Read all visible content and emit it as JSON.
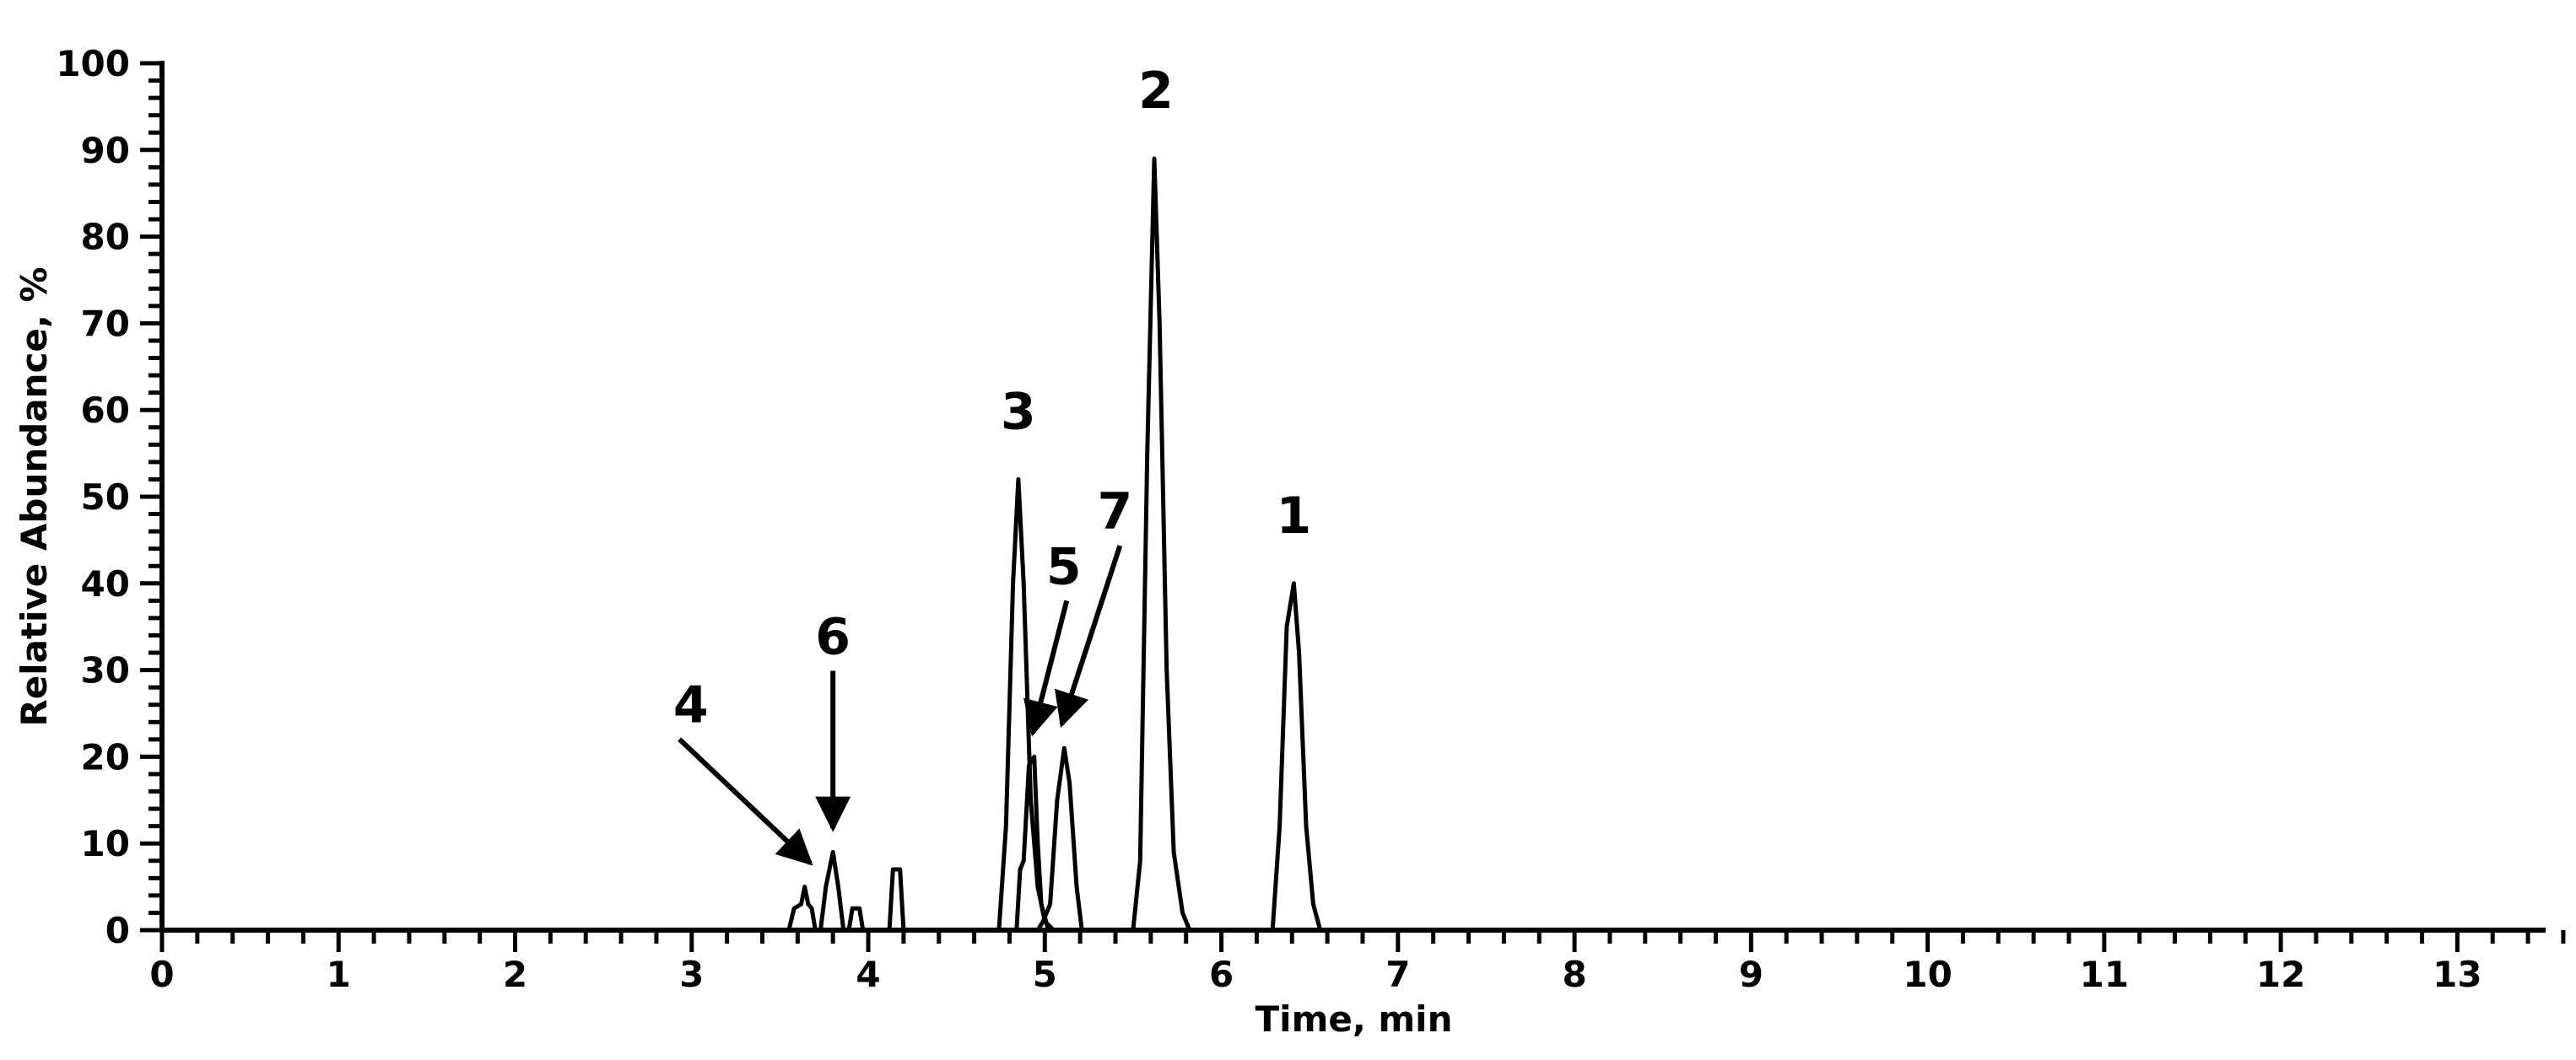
{
  "chart_data": {
    "type": "line",
    "title": "",
    "xlabel": "Time, min",
    "ylabel": "Relative Abundance, %",
    "xlim": [
      0,
      13.5
    ],
    "ylim": [
      0,
      100
    ],
    "x_ticks": [
      "0",
      "1",
      "2",
      "3",
      "4",
      "5",
      "6",
      "7",
      "8",
      "9",
      "10",
      "11",
      "12",
      "13"
    ],
    "y_ticks": [
      "0",
      "10",
      "20",
      "30",
      "40",
      "50",
      "60",
      "70",
      "80",
      "90",
      "100"
    ],
    "grid": false,
    "legend": "none",
    "line_color": "#000000",
    "series": [
      {
        "values": [
          [
            3.55,
            0
          ],
          [
            3.58,
            2.5
          ],
          [
            3.62,
            3
          ],
          [
            3.64,
            5
          ],
          [
            3.66,
            3
          ],
          [
            3.68,
            2.5
          ],
          [
            3.7,
            0
          ]
        ]
      },
      {
        "values": [
          [
            3.73,
            0
          ],
          [
            3.76,
            5
          ],
          [
            3.8,
            9
          ],
          [
            3.83,
            5
          ],
          [
            3.86,
            0
          ],
          [
            3.89,
            0
          ],
          [
            3.91,
            2.5
          ],
          [
            3.95,
            2.5
          ],
          [
            3.97,
            0
          ]
        ]
      },
      {
        "values": [
          [
            4.12,
            0
          ],
          [
            4.14,
            7
          ],
          [
            4.18,
            7
          ],
          [
            4.2,
            0
          ]
        ]
      },
      {
        "values": [
          [
            4.74,
            0
          ],
          [
            4.78,
            12
          ],
          [
            4.82,
            40
          ],
          [
            4.85,
            52
          ],
          [
            4.88,
            40
          ],
          [
            4.92,
            15
          ],
          [
            4.96,
            5
          ],
          [
            5.0,
            1
          ],
          [
            5.05,
            0
          ]
        ]
      },
      {
        "values": [
          [
            4.84,
            0
          ],
          [
            4.86,
            7
          ],
          [
            4.88,
            8
          ],
          [
            4.91,
            19
          ],
          [
            4.94,
            20
          ],
          [
            4.96,
            10
          ],
          [
            4.98,
            3
          ],
          [
            5.02,
            0
          ]
        ]
      },
      {
        "values": [
          [
            4.96,
            0
          ],
          [
            4.99,
            1
          ],
          [
            5.03,
            3
          ],
          [
            5.07,
            15
          ],
          [
            5.11,
            21
          ],
          [
            5.14,
            17
          ],
          [
            5.18,
            5
          ],
          [
            5.21,
            0
          ]
        ]
      },
      {
        "values": [
          [
            5.5,
            0
          ],
          [
            5.54,
            8
          ],
          [
            5.58,
            55
          ],
          [
            5.62,
            89
          ],
          [
            5.65,
            70
          ],
          [
            5.69,
            30
          ],
          [
            5.73,
            9
          ],
          [
            5.78,
            2
          ],
          [
            5.82,
            0
          ]
        ]
      },
      {
        "values": [
          [
            6.29,
            0
          ],
          [
            6.33,
            12
          ],
          [
            6.37,
            35
          ],
          [
            6.41,
            40
          ],
          [
            6.44,
            32
          ],
          [
            6.48,
            12
          ],
          [
            6.52,
            3
          ],
          [
            6.56,
            0
          ]
        ]
      }
    ],
    "annotations": [
      {
        "text": "1",
        "x": 6.41,
        "y": 40
      },
      {
        "text": "2",
        "x": 5.62,
        "y": 89
      },
      {
        "text": "3",
        "x": 4.85,
        "y": 52
      },
      {
        "text": "4",
        "x": 3.64,
        "y": 5
      },
      {
        "text": "5",
        "x": 4.94,
        "y": 20
      },
      {
        "text": "6",
        "x": 3.8,
        "y": 9
      },
      {
        "text": "7",
        "x": 5.11,
        "y": 21
      }
    ]
  }
}
